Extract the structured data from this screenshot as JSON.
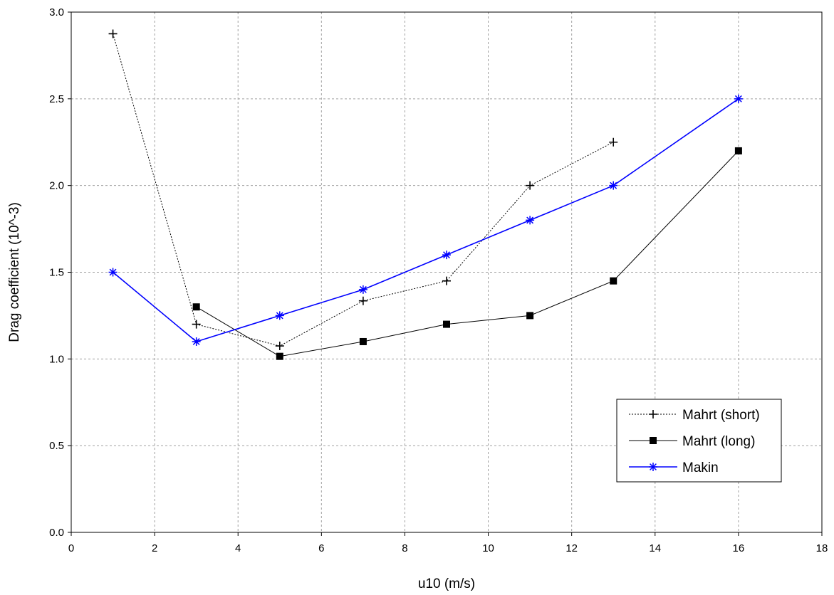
{
  "chart_data": {
    "type": "line",
    "title": "",
    "xlabel": "u10 (m/s)",
    "ylabel": "Drag coefficient (10^-3)",
    "xlim": [
      0,
      18
    ],
    "ylim": [
      0,
      3
    ],
    "x_ticks": [
      "0",
      "2",
      "4",
      "6",
      "8",
      "10",
      "12",
      "14",
      "16",
      "18"
    ],
    "y_ticks": [
      "0.0",
      "0.5",
      "1.0",
      "1.5",
      "2.0",
      "2.5",
      "3.0"
    ],
    "grid": true,
    "legend_position": "bottom-right",
    "series": [
      {
        "name": "Mahrt (short)",
        "color": "#000000",
        "line_style": "dotted",
        "marker": "plus",
        "x": [
          1,
          3,
          5,
          7,
          9,
          11,
          13
        ],
        "y": [
          2.875,
          1.2,
          1.075,
          1.335,
          1.45,
          2.0,
          2.25
        ]
      },
      {
        "name": "Mahrt (long)",
        "color": "#000000",
        "line_style": "solid",
        "marker": "square",
        "x": [
          3,
          5,
          7,
          9,
          11,
          13,
          16
        ],
        "y": [
          1.3,
          1.015,
          1.1,
          1.2,
          1.25,
          1.45,
          2.2
        ]
      },
      {
        "name": "Makin",
        "color": "#0000ff",
        "line_style": "solid",
        "marker": "asterisk",
        "x": [
          1,
          3,
          5,
          7,
          9,
          11,
          13,
          16
        ],
        "y": [
          1.5,
          1.1,
          1.25,
          1.4,
          1.6,
          1.8,
          2.0,
          2.5
        ]
      }
    ]
  }
}
